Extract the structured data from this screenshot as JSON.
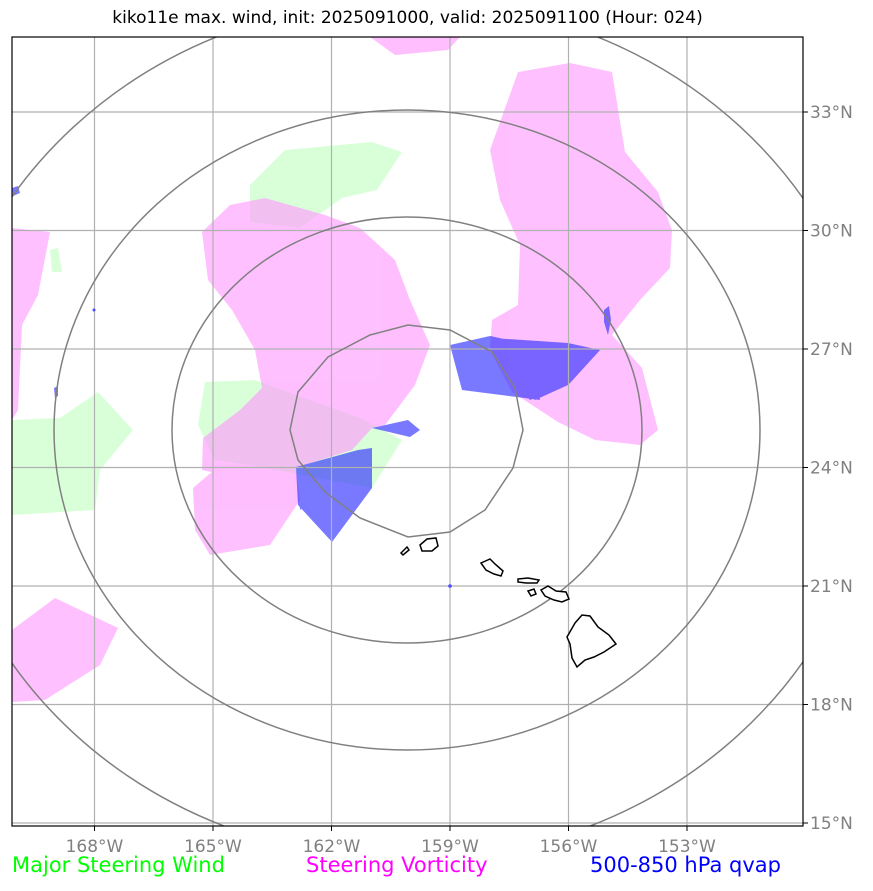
{
  "title": "kiko11e max. wind, init: 2025091000, valid: 2025091100 (Hour: 024)",
  "axes": {
    "lon_labels": [
      "168°W",
      "165°W",
      "162°W",
      "159°W",
      "156°W",
      "153°W"
    ],
    "lat_labels": [
      "33°N",
      "30°N",
      "27°N",
      "24°N",
      "21°N",
      "18°N",
      "15°N"
    ]
  },
  "legend": [
    {
      "label": "Major Steering Wind",
      "color": "#00ff00"
    },
    {
      "label": "Steering Vorticity",
      "color": "#ff00ff"
    },
    {
      "label": "500-850 hPa qvap",
      "color": "#0000ff"
    }
  ],
  "colors": {
    "steering_wind_fill": "#ccffcc",
    "vorticity_fill": "#ffb3ff",
    "qvap_fill": "#4d4dff",
    "coastline": "#000000",
    "range_rings": "#808080",
    "gridlines": "#b0b0b0"
  }
}
